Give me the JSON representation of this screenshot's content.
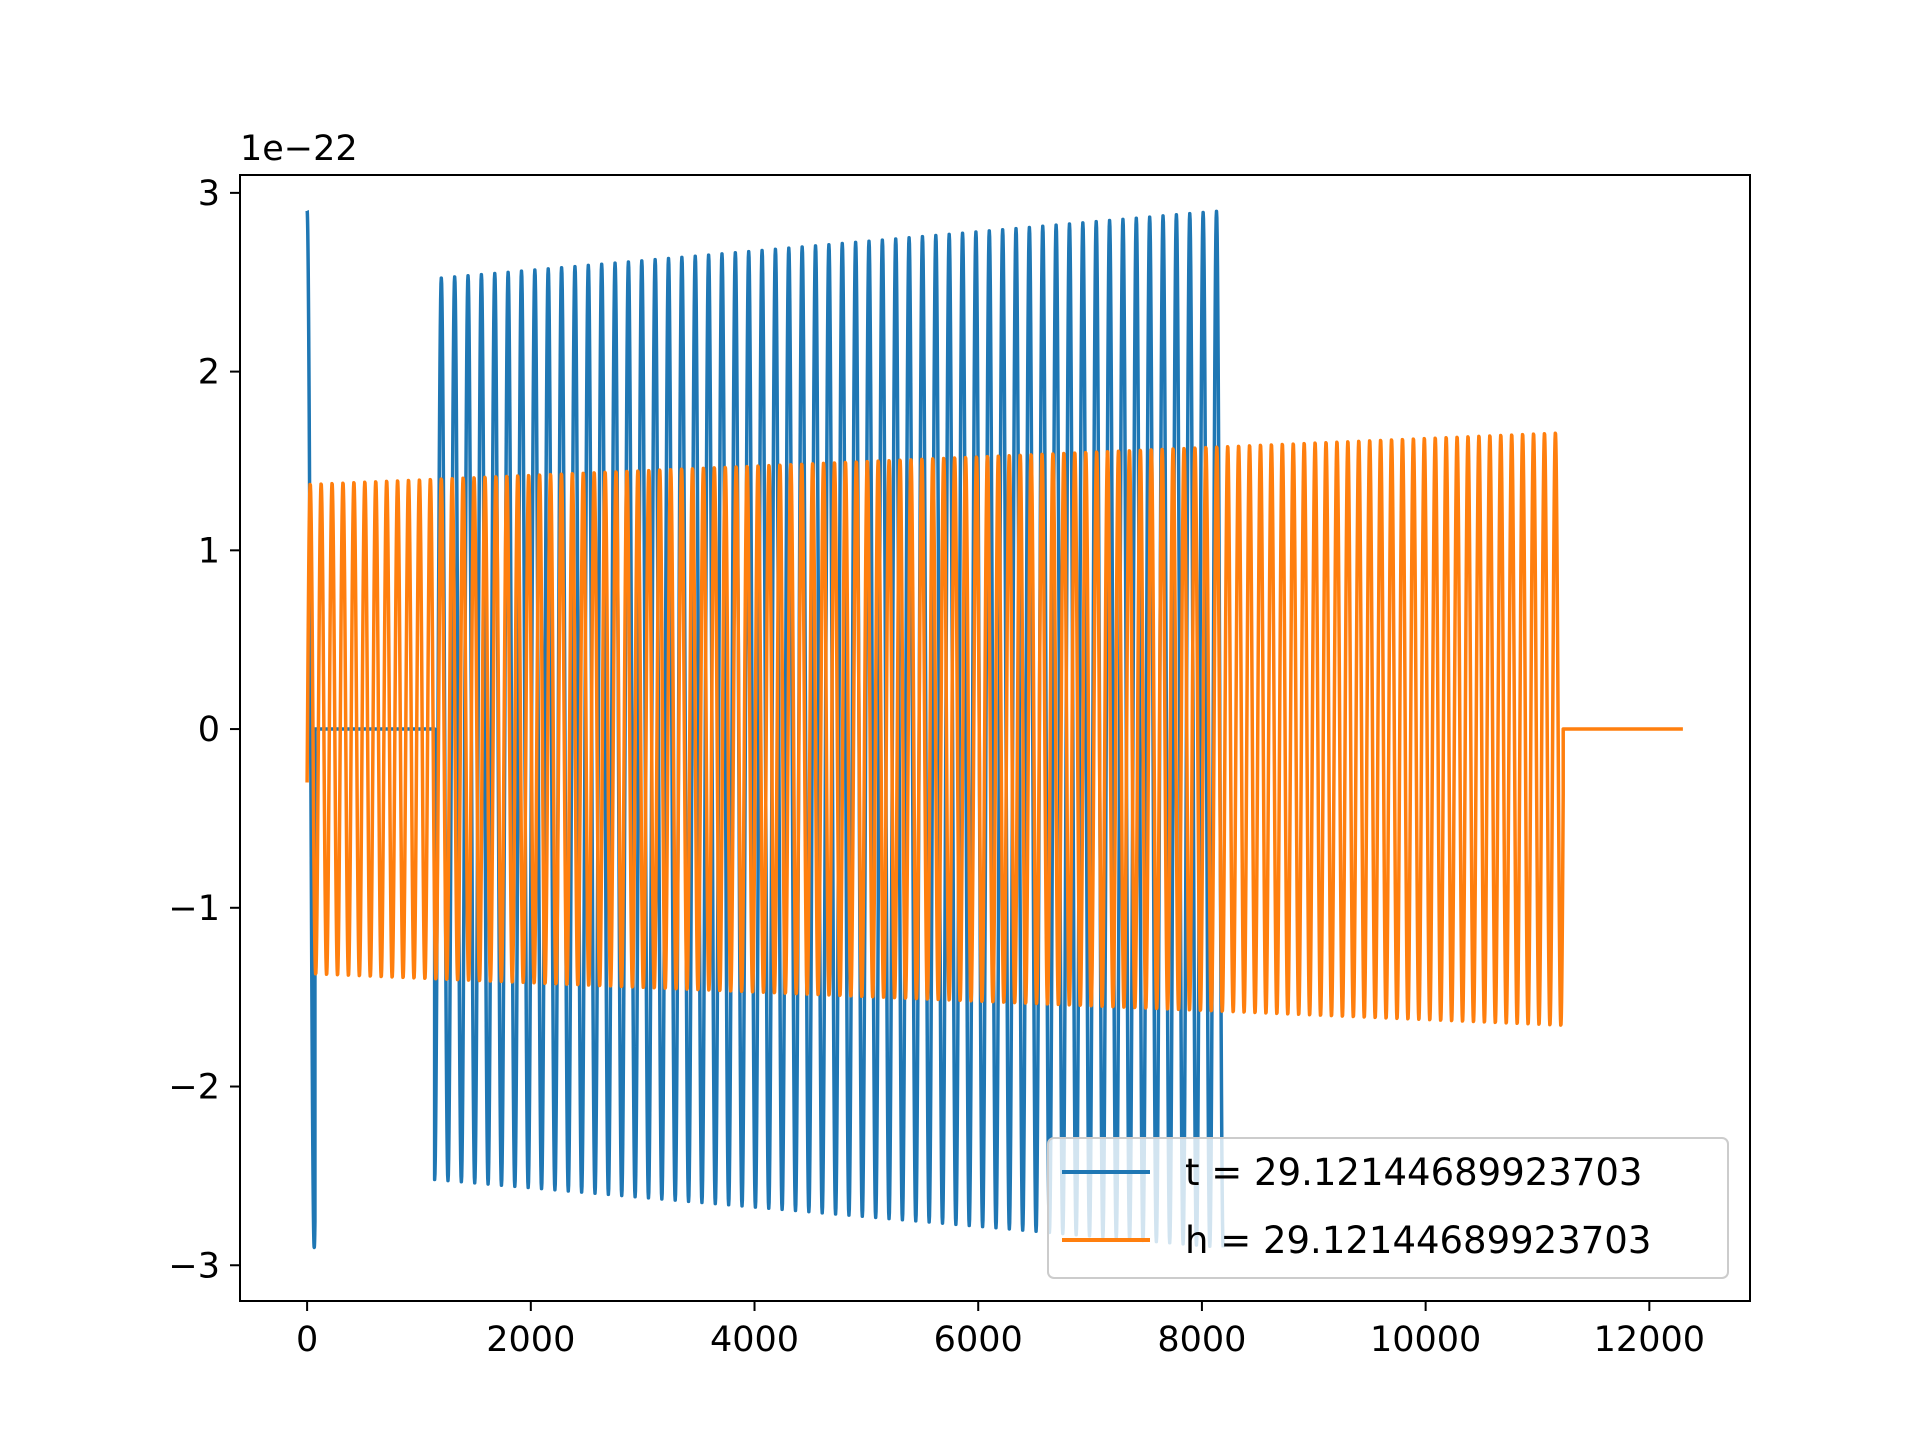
{
  "chart_data": {
    "type": "line",
    "title": "",
    "xlabel": "",
    "ylabel": "",
    "y_offset_label": "1e−22",
    "xlim": [
      -600,
      12900
    ],
    "ylim": [
      -3.2,
      3.1
    ],
    "x_ticks": [
      0,
      2000,
      4000,
      6000,
      8000,
      10000,
      12000
    ],
    "x_tick_labels": [
      "0",
      "2000",
      "4000",
      "6000",
      "8000",
      "10000",
      "12000"
    ],
    "y_ticks": [
      -3,
      -2,
      -1,
      0,
      1,
      2,
      3
    ],
    "y_tick_labels": [
      "−3",
      "−2",
      "−1",
      "0",
      "1",
      "2",
      "3"
    ],
    "grid": false,
    "legend_position": "lower-right",
    "series": [
      {
        "name": "t = 29.12144689923703",
        "color": "#1f77b4",
        "segments": [
          {
            "x_start": 0,
            "x_end": 70,
            "amp_start": 2.9,
            "amp_end": 2.9,
            "cycles": 0.55,
            "phase": 1.5708
          },
          {
            "x_start": 70,
            "x_end": 1140,
            "constant": 0.0
          },
          {
            "x_start": 1140,
            "x_end": 8190,
            "amp_start": 2.52,
            "amp_end": 2.9,
            "cycles": 59,
            "phase": -1.5708
          }
        ]
      },
      {
        "name": "h = 29.12144689923703",
        "color": "#ff7f0e",
        "segments": [
          {
            "x_start": 0,
            "x_end": 11230,
            "amp_start": 1.37,
            "amp_end": 1.66,
            "cycles": 115,
            "phase": -0.22
          },
          {
            "x_start": 11230,
            "x_end": 12300,
            "constant": 0.0
          }
        ]
      }
    ]
  }
}
